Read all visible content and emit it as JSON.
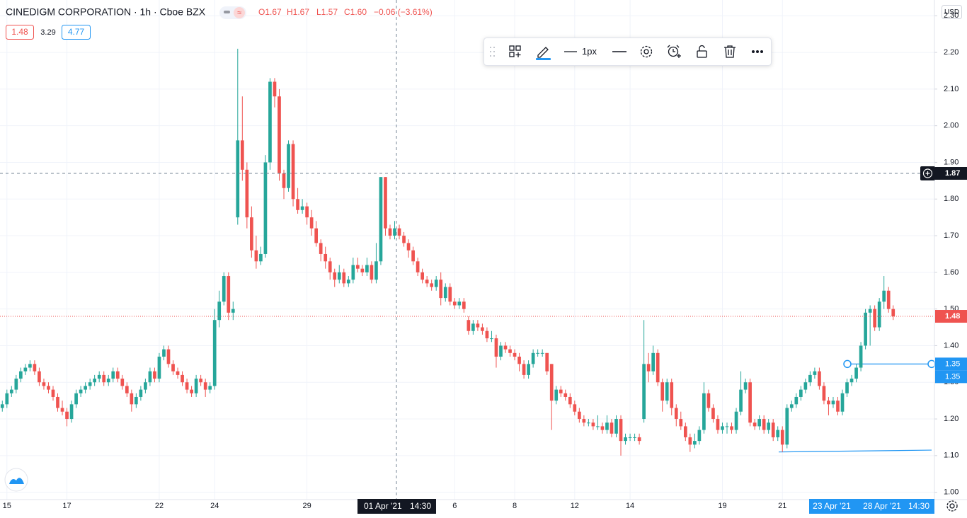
{
  "chart_data": {
    "type": "candlestick",
    "title": "CINEDIGM CORPORATION · 1h · Cboe BZX",
    "ohlc_legend": [
      "O1.67",
      "H1.67",
      "L1.57",
      "C1.60",
      "−0.06 (−3.61%)"
    ],
    "quote": {
      "bid": "1.48",
      "spread": "3.29",
      "ask": "4.77"
    },
    "currency": "USD",
    "line_width": "1px",
    "up_color": "#26a69a",
    "down_color": "#ef5350",
    "grid": true,
    "ylim": [
      0.98,
      2.343
    ],
    "yticks": [
      {
        "value": 1.0,
        "label": "1.00"
      },
      {
        "value": 1.1,
        "label": "1.10"
      },
      {
        "value": 1.2,
        "label": "1.20"
      },
      {
        "value": 1.3,
        "label": "1.30"
      },
      {
        "value": 1.4,
        "label": "1.40"
      },
      {
        "value": 1.5,
        "label": "1.50"
      },
      {
        "value": 1.6,
        "label": "1.60"
      },
      {
        "value": 1.7,
        "label": "1.70"
      },
      {
        "value": 1.8,
        "label": "1.80"
      },
      {
        "value": 1.9,
        "label": "1.90"
      },
      {
        "value": 2.0,
        "label": "2.00"
      },
      {
        "value": 2.1,
        "label": "2.10"
      },
      {
        "value": 2.2,
        "label": "2.20"
      },
      {
        "value": 2.3,
        "label": "2.30"
      }
    ],
    "crosshair": {
      "date": "01 Apr '21",
      "time": "14:30",
      "price": 1.87
    },
    "last_price": 1.48,
    "trend_line": {
      "values": [
        1.35,
        1.35
      ]
    },
    "ray": {
      "values": [
        1.11,
        1.115
      ]
    },
    "selection": {
      "start": "23 Apr '21",
      "end": "28 Apr '21",
      "time": "14:30"
    },
    "categories": [
      null,
      "15",
      null,
      null,
      null,
      null,
      null,
      null,
      null,
      null,
      null,
      null,
      null,
      null,
      "17",
      null,
      null,
      null,
      null,
      null,
      null,
      null,
      null,
      null,
      null,
      null,
      null,
      null,
      null,
      null,
      null,
      null,
      null,
      null,
      "22",
      null,
      null,
      null,
      null,
      null,
      null,
      null,
      null,
      null,
      null,
      null,
      "24",
      null,
      null,
      null,
      null,
      null,
      null,
      null,
      null,
      null,
      null,
      null,
      null,
      null,
      null,
      null,
      null,
      null,
      null,
      null,
      "29",
      null,
      null,
      null,
      null,
      null,
      null,
      null,
      null,
      null,
      null,
      null,
      null,
      null,
      null,
      null,
      null,
      null,
      null,
      null,
      null,
      null,
      null,
      null,
      null,
      null,
      null,
      null,
      null,
      null,
      null,
      null,
      "6",
      null,
      null,
      null,
      null,
      null,
      null,
      null,
      null,
      null,
      null,
      null,
      null,
      "8",
      null,
      null,
      null,
      null,
      null,
      null,
      null,
      null,
      null,
      null,
      null,
      null,
      "12",
      null,
      null,
      null,
      null,
      null,
      null,
      null,
      null,
      null,
      null,
      null,
      "14",
      null,
      null,
      null,
      null,
      null,
      null,
      null,
      null,
      null,
      null,
      null,
      null,
      null,
      null,
      null,
      null,
      null,
      null,
      null,
      "19",
      null,
      null,
      null,
      null,
      null,
      null,
      null,
      null,
      null,
      null,
      null,
      null,
      "21",
      null,
      null,
      null,
      null,
      null,
      null,
      null,
      null,
      null,
      null,
      null,
      null,
      null,
      null,
      null,
      null,
      null,
      null,
      null,
      null,
      null,
      null,
      null,
      null
    ],
    "ohlc": [
      [
        1.23,
        1.25,
        1.22,
        1.24
      ],
      [
        1.24,
        1.28,
        1.23,
        1.27
      ],
      [
        1.27,
        1.29,
        1.26,
        1.28
      ],
      [
        1.28,
        1.32,
        1.27,
        1.31
      ],
      [
        1.31,
        1.34,
        1.3,
        1.33
      ],
      [
        1.33,
        1.35,
        1.32,
        1.34
      ],
      [
        1.34,
        1.36,
        1.33,
        1.35
      ],
      [
        1.35,
        1.36,
        1.32,
        1.33
      ],
      [
        1.33,
        1.34,
        1.29,
        1.3
      ],
      [
        1.3,
        1.31,
        1.28,
        1.29
      ],
      [
        1.29,
        1.3,
        1.27,
        1.28
      ],
      [
        1.28,
        1.29,
        1.25,
        1.26
      ],
      [
        1.26,
        1.27,
        1.22,
        1.23
      ],
      [
        1.23,
        1.25,
        1.21,
        1.22
      ],
      [
        1.22,
        1.23,
        1.18,
        1.2
      ],
      [
        1.2,
        1.25,
        1.19,
        1.24
      ],
      [
        1.24,
        1.28,
        1.23,
        1.27
      ],
      [
        1.27,
        1.29,
        1.26,
        1.28
      ],
      [
        1.28,
        1.3,
        1.27,
        1.29
      ],
      [
        1.29,
        1.31,
        1.28,
        1.3
      ],
      [
        1.3,
        1.32,
        1.29,
        1.31
      ],
      [
        1.31,
        1.33,
        1.3,
        1.32
      ],
      [
        1.32,
        1.33,
        1.29,
        1.3
      ],
      [
        1.3,
        1.32,
        1.29,
        1.31
      ],
      [
        1.31,
        1.34,
        1.3,
        1.33
      ],
      [
        1.33,
        1.34,
        1.3,
        1.31
      ],
      [
        1.31,
        1.32,
        1.28,
        1.29
      ],
      [
        1.29,
        1.3,
        1.26,
        1.27
      ],
      [
        1.27,
        1.28,
        1.22,
        1.24
      ],
      [
        1.24,
        1.27,
        1.23,
        1.26
      ],
      [
        1.26,
        1.29,
        1.25,
        1.28
      ],
      [
        1.28,
        1.31,
        1.27,
        1.3
      ],
      [
        1.3,
        1.34,
        1.29,
        1.33
      ],
      [
        1.33,
        1.34,
        1.3,
        1.31
      ],
      [
        1.31,
        1.38,
        1.3,
        1.37
      ],
      [
        1.37,
        1.4,
        1.36,
        1.39
      ],
      [
        1.39,
        1.4,
        1.34,
        1.35
      ],
      [
        1.35,
        1.36,
        1.32,
        1.33
      ],
      [
        1.33,
        1.34,
        1.31,
        1.32
      ],
      [
        1.32,
        1.33,
        1.29,
        1.3
      ],
      [
        1.3,
        1.31,
        1.27,
        1.28
      ],
      [
        1.28,
        1.29,
        1.26,
        1.27
      ],
      [
        1.27,
        1.32,
        1.26,
        1.31
      ],
      [
        1.31,
        1.32,
        1.29,
        1.3
      ],
      [
        1.3,
        1.31,
        1.26,
        1.28
      ],
      [
        1.28,
        1.3,
        1.27,
        1.29
      ],
      [
        1.29,
        1.5,
        1.28,
        1.47
      ],
      [
        1.47,
        1.55,
        1.45,
        1.52
      ],
      [
        1.52,
        1.6,
        1.51,
        1.59
      ],
      [
        1.59,
        1.6,
        1.47,
        1.49
      ],
      [
        1.49,
        1.52,
        1.47,
        1.5
      ],
      [
        1.75,
        2.21,
        1.73,
        1.96
      ],
      [
        1.96,
        2.08,
        1.85,
        1.88
      ],
      [
        1.88,
        1.9,
        1.72,
        1.75
      ],
      [
        1.75,
        1.78,
        1.64,
        1.66
      ],
      [
        1.66,
        1.7,
        1.61,
        1.63
      ],
      [
        1.63,
        1.67,
        1.62,
        1.65
      ],
      [
        1.65,
        1.92,
        1.64,
        1.9
      ],
      [
        1.9,
        2.13,
        1.88,
        2.12
      ],
      [
        2.12,
        2.13,
        2.05,
        2.08
      ],
      [
        2.08,
        2.1,
        1.85,
        1.87
      ],
      [
        1.87,
        1.88,
        1.8,
        1.83
      ],
      [
        1.83,
        1.96,
        1.82,
        1.95
      ],
      [
        1.95,
        1.96,
        1.78,
        1.8
      ],
      [
        1.8,
        1.83,
        1.76,
        1.77
      ],
      [
        1.77,
        1.8,
        1.76,
        1.78
      ],
      [
        1.78,
        1.79,
        1.73,
        1.75
      ],
      [
        1.75,
        1.77,
        1.7,
        1.72
      ],
      [
        1.72,
        1.74,
        1.67,
        1.68
      ],
      [
        1.68,
        1.69,
        1.63,
        1.65
      ],
      [
        1.65,
        1.67,
        1.61,
        1.63
      ],
      [
        1.63,
        1.64,
        1.58,
        1.6
      ],
      [
        1.6,
        1.61,
        1.56,
        1.58
      ],
      [
        1.58,
        1.62,
        1.57,
        1.6
      ],
      [
        1.6,
        1.61,
        1.56,
        1.57
      ],
      [
        1.57,
        1.59,
        1.56,
        1.58
      ],
      [
        1.58,
        1.64,
        1.57,
        1.62
      ],
      [
        1.62,
        1.64,
        1.6,
        1.61
      ],
      [
        1.61,
        1.62,
        1.59,
        1.6
      ],
      [
        1.6,
        1.64,
        1.59,
        1.62
      ],
      [
        1.62,
        1.63,
        1.57,
        1.58
      ],
      [
        1.58,
        1.68,
        1.57,
        1.63
      ],
      [
        1.63,
        1.86,
        1.62,
        1.86
      ],
      [
        1.86,
        1.86,
        1.7,
        1.72
      ],
      [
        1.72,
        1.73,
        1.69,
        1.7
      ],
      [
        1.7,
        1.74,
        1.69,
        1.72
      ],
      [
        1.72,
        1.73,
        1.69,
        1.7
      ],
      [
        1.7,
        1.71,
        1.67,
        1.68
      ],
      [
        1.68,
        1.69,
        1.64,
        1.66
      ],
      [
        1.66,
        1.67,
        1.62,
        1.63
      ],
      [
        1.63,
        1.64,
        1.59,
        1.6
      ],
      [
        1.6,
        1.61,
        1.57,
        1.58
      ],
      [
        1.58,
        1.59,
        1.56,
        1.57
      ],
      [
        1.57,
        1.58,
        1.55,
        1.56
      ],
      [
        1.56,
        1.59,
        1.55,
        1.58
      ],
      [
        1.58,
        1.6,
        1.51,
        1.53
      ],
      [
        1.53,
        1.57,
        1.52,
        1.56
      ],
      [
        1.56,
        1.57,
        1.51,
        1.52
      ],
      [
        1.52,
        1.53,
        1.5,
        1.51
      ],
      [
        1.51,
        1.53,
        1.5,
        1.52
      ],
      [
        1.52,
        1.53,
        1.49,
        1.5
      ],
      [
        1.47,
        1.48,
        1.43,
        1.44
      ],
      [
        1.44,
        1.47,
        1.43,
        1.46
      ],
      [
        1.46,
        1.47,
        1.44,
        1.45
      ],
      [
        1.45,
        1.46,
        1.43,
        1.44
      ],
      [
        1.44,
        1.45,
        1.41,
        1.42
      ],
      [
        1.42,
        1.44,
        1.41,
        1.42
      ],
      [
        1.42,
        1.43,
        1.34,
        1.37
      ],
      [
        1.37,
        1.41,
        1.36,
        1.4
      ],
      [
        1.4,
        1.41,
        1.38,
        1.39
      ],
      [
        1.39,
        1.4,
        1.37,
        1.38
      ],
      [
        1.38,
        1.39,
        1.36,
        1.37
      ],
      [
        1.37,
        1.38,
        1.33,
        1.35
      ],
      [
        1.35,
        1.36,
        1.31,
        1.32
      ],
      [
        1.32,
        1.36,
        1.31,
        1.35
      ],
      [
        1.35,
        1.39,
        1.34,
        1.38
      ],
      [
        1.38,
        1.39,
        1.37,
        1.38
      ],
      [
        1.38,
        1.39,
        1.37,
        1.38
      ],
      [
        1.38,
        1.38,
        1.32,
        1.33
      ],
      [
        1.35,
        1.35,
        1.17,
        1.25
      ],
      [
        1.25,
        1.29,
        1.24,
        1.28
      ],
      [
        1.28,
        1.29,
        1.26,
        1.27
      ],
      [
        1.27,
        1.28,
        1.25,
        1.26
      ],
      [
        1.26,
        1.27,
        1.23,
        1.24
      ],
      [
        1.24,
        1.25,
        1.21,
        1.22
      ],
      [
        1.22,
        1.23,
        1.19,
        1.2
      ],
      [
        1.2,
        1.21,
        1.18,
        1.19
      ],
      [
        1.19,
        1.2,
        1.18,
        1.19
      ],
      [
        1.19,
        1.2,
        1.17,
        1.18
      ],
      [
        1.18,
        1.21,
        1.17,
        1.18
      ],
      [
        1.18,
        1.19,
        1.16,
        1.17
      ],
      [
        1.17,
        1.21,
        1.16,
        1.19
      ],
      [
        1.19,
        1.2,
        1.15,
        1.16
      ],
      [
        1.16,
        1.21,
        1.15,
        1.2
      ],
      [
        1.2,
        1.21,
        1.1,
        1.14
      ],
      [
        1.14,
        1.16,
        1.13,
        1.15
      ],
      [
        1.15,
        1.16,
        1.14,
        1.15
      ],
      [
        1.15,
        1.16,
        1.14,
        1.15
      ],
      [
        1.15,
        1.16,
        1.13,
        1.14
      ],
      [
        1.2,
        1.47,
        1.19,
        1.35
      ],
      [
        1.35,
        1.38,
        1.3,
        1.33
      ],
      [
        1.33,
        1.4,
        1.32,
        1.38
      ],
      [
        1.38,
        1.39,
        1.29,
        1.3
      ],
      [
        1.3,
        1.31,
        1.22,
        1.25
      ],
      [
        1.25,
        1.31,
        1.24,
        1.3
      ],
      [
        1.3,
        1.31,
        1.21,
        1.23
      ],
      [
        1.23,
        1.24,
        1.18,
        1.2
      ],
      [
        1.2,
        1.22,
        1.17,
        1.18
      ],
      [
        1.18,
        1.19,
        1.14,
        1.15
      ],
      [
        1.15,
        1.16,
        1.11,
        1.13
      ],
      [
        1.13,
        1.16,
        1.12,
        1.14
      ],
      [
        1.14,
        1.18,
        1.13,
        1.17
      ],
      [
        1.17,
        1.3,
        1.16,
        1.27
      ],
      [
        1.27,
        1.28,
        1.22,
        1.23
      ],
      [
        1.23,
        1.24,
        1.19,
        1.2
      ],
      [
        1.2,
        1.21,
        1.16,
        1.17
      ],
      [
        1.17,
        1.19,
        1.16,
        1.18
      ],
      [
        1.18,
        1.19,
        1.16,
        1.18
      ],
      [
        1.18,
        1.19,
        1.16,
        1.17
      ],
      [
        1.17,
        1.23,
        1.16,
        1.22
      ],
      [
        1.22,
        1.33,
        1.21,
        1.28
      ],
      [
        1.28,
        1.31,
        1.27,
        1.3
      ],
      [
        1.3,
        1.31,
        1.18,
        1.19
      ],
      [
        1.19,
        1.2,
        1.17,
        1.18
      ],
      [
        1.18,
        1.21,
        1.17,
        1.2
      ],
      [
        1.2,
        1.21,
        1.16,
        1.17
      ],
      [
        1.17,
        1.2,
        1.16,
        1.19
      ],
      [
        1.19,
        1.2,
        1.14,
        1.15
      ],
      [
        1.15,
        1.18,
        1.14,
        1.17
      ],
      [
        1.17,
        1.18,
        1.11,
        1.13
      ],
      [
        1.13,
        1.24,
        1.12,
        1.23
      ],
      [
        1.23,
        1.25,
        1.22,
        1.24
      ],
      [
        1.24,
        1.27,
        1.23,
        1.26
      ],
      [
        1.26,
        1.29,
        1.25,
        1.28
      ],
      [
        1.28,
        1.31,
        1.27,
        1.3
      ],
      [
        1.3,
        1.33,
        1.29,
        1.32
      ],
      [
        1.32,
        1.34,
        1.31,
        1.33
      ],
      [
        1.33,
        1.34,
        1.28,
        1.29
      ],
      [
        1.29,
        1.3,
        1.24,
        1.25
      ],
      [
        1.25,
        1.26,
        1.21,
        1.24
      ],
      [
        1.24,
        1.26,
        1.23,
        1.25
      ],
      [
        1.25,
        1.26,
        1.21,
        1.22
      ],
      [
        1.22,
        1.28,
        1.21,
        1.27
      ],
      [
        1.27,
        1.31,
        1.26,
        1.3
      ],
      [
        1.3,
        1.32,
        1.29,
        1.31
      ],
      [
        1.31,
        1.35,
        1.3,
        1.34
      ],
      [
        1.34,
        1.41,
        1.33,
        1.4
      ],
      [
        1.4,
        1.5,
        1.39,
        1.49
      ],
      [
        1.49,
        1.51,
        1.4,
        1.5
      ],
      [
        1.5,
        1.51,
        1.44,
        1.45
      ],
      [
        1.45,
        1.53,
        1.44,
        1.52
      ],
      [
        1.52,
        1.59,
        1.5,
        1.55
      ],
      [
        1.55,
        1.56,
        1.49,
        1.5
      ],
      [
        1.5,
        1.51,
        1.47,
        1.48
      ]
    ]
  }
}
